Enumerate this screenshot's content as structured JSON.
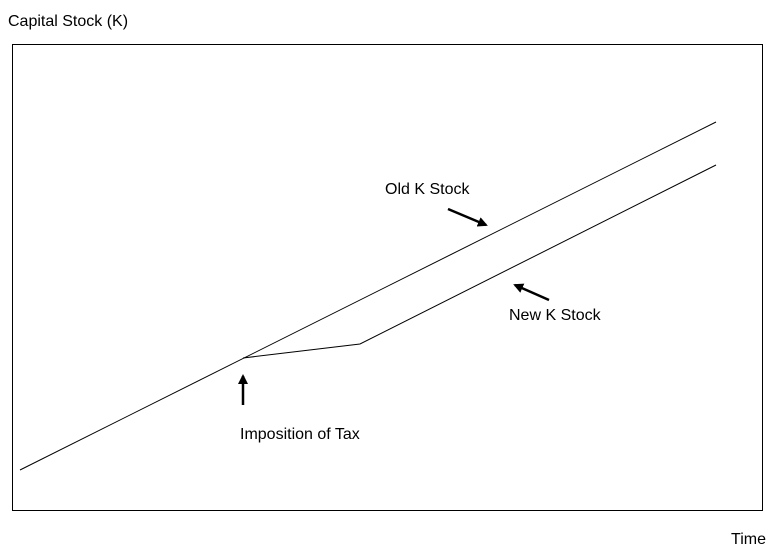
{
  "axes": {
    "y_label": "Capital Stock (K)",
    "x_label": "Time"
  },
  "labels": {
    "old_stock": "Old K Stock",
    "new_stock": "New K Stock",
    "tax": "Imposition of Tax"
  }
}
